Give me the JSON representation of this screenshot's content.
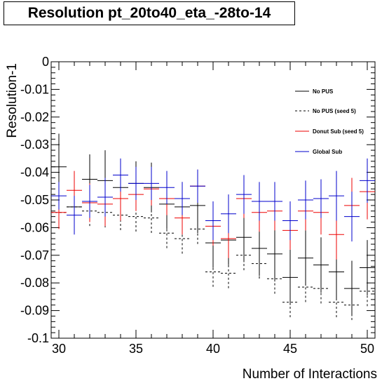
{
  "title": "Resolution pt_20to40_eta_-28to-14",
  "chart_data": {
    "type": "scatter",
    "xlabel": "Number of Interactions",
    "ylabel": "Resolution-1",
    "xlim": [
      29.5,
      50.5
    ],
    "ylim": [
      -0.1,
      0
    ],
    "x_ticks": [
      "30",
      "35",
      "40",
      "45",
      "50"
    ],
    "y_ticks": [
      "0",
      "-0.01",
      "-0.02",
      "-0.03",
      "-0.04",
      "-0.05",
      "-0.06",
      "-0.07",
      "-0.08",
      "-0.09",
      "-0.1"
    ],
    "grid": false,
    "legend_position": "top-right",
    "x": [
      30,
      31,
      32,
      33,
      34,
      35,
      36,
      37,
      38,
      39,
      40,
      41,
      42,
      43,
      44,
      45,
      46,
      47,
      48,
      49,
      50
    ],
    "series": [
      {
        "name": "No PUS",
        "color": "#000000",
        "line_style": "solid",
        "y": [
          -0.038,
          -0.0525,
          -0.0425,
          -0.043,
          -0.0455,
          -0.044,
          -0.0455,
          -0.0515,
          -0.0525,
          -0.052,
          -0.0655,
          -0.0645,
          -0.0635,
          -0.0675,
          -0.0695,
          -0.078,
          -0.071,
          -0.0735,
          -0.076,
          -0.082,
          -0.0745
        ],
        "err": [
          0.012,
          0.009,
          0.009,
          0.011,
          0.009,
          0.008,
          0.009,
          0.009,
          0.009,
          0.01,
          0.009,
          0.009,
          0.009,
          0.01,
          0.01,
          0.01,
          0.01,
          0.01,
          0.01,
          0.01,
          0.01
        ]
      },
      {
        "name": "No PUS (seed 5)",
        "color": "#000000",
        "line_style": "dashed",
        "y": [
          -0.0545,
          -0.0525,
          -0.054,
          -0.0545,
          -0.0555,
          -0.056,
          -0.0565,
          -0.062,
          -0.064,
          -0.0605,
          -0.076,
          -0.0765,
          -0.07,
          -0.073,
          -0.0785,
          -0.087,
          -0.0815,
          -0.082,
          -0.087,
          -0.088,
          -0.083
        ],
        "err": [
          0.006,
          0.005,
          0.006,
          0.006,
          0.006,
          0.006,
          0.006,
          0.006,
          0.006,
          0.006,
          0.006,
          0.006,
          0.006,
          0.006,
          0.006,
          0.006,
          0.006,
          0.006,
          0.006,
          0.006,
          0.006
        ]
      },
      {
        "name": "Donut Sub (seed 5)",
        "color": "#ee0000",
        "line_style": "solid",
        "y": [
          -0.0545,
          -0.0465,
          -0.051,
          -0.0515,
          -0.0495,
          -0.048,
          -0.046,
          -0.0495,
          -0.0565,
          -0.045,
          -0.0595,
          -0.064,
          -0.0495,
          -0.0545,
          -0.054,
          -0.061,
          -0.054,
          -0.0545,
          -0.0625,
          -0.052,
          -0.047
        ],
        "err": [
          0.006,
          0.007,
          0.007,
          0.008,
          0.008,
          0.006,
          0.006,
          0.006,
          0.006,
          0.006,
          0.007,
          0.007,
          0.007,
          0.007,
          0.007,
          0.007,
          0.007,
          0.008,
          0.009,
          0.01,
          0.01
        ]
      },
      {
        "name": "Global Sub",
        "color": "#0000cc",
        "line_style": "solid",
        "y": [
          -0.0485,
          -0.0555,
          -0.0505,
          -0.049,
          -0.041,
          -0.044,
          -0.044,
          -0.0455,
          -0.0495,
          -0.045,
          -0.0575,
          -0.055,
          -0.048,
          -0.0505,
          -0.0505,
          -0.0575,
          -0.05,
          -0.0495,
          -0.0485,
          -0.056,
          -0.043
        ],
        "err": [
          0.005,
          0.007,
          0.006,
          0.007,
          0.006,
          0.006,
          0.006,
          0.006,
          0.006,
          0.006,
          0.007,
          0.007,
          0.007,
          0.007,
          0.007,
          0.007,
          0.007,
          0.007,
          0.009,
          0.009,
          0.008
        ]
      }
    ]
  }
}
